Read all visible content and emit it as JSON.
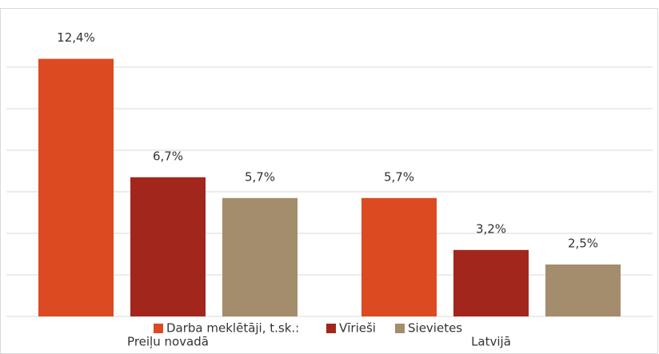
{
  "chart_data": {
    "type": "bar",
    "categories": [
      "Preiļu novadā",
      "Latvijā"
    ],
    "series": [
      {
        "name": "Darba meklētāji, t.sk.:",
        "color": "#dc4a22",
        "values": [
          12.4,
          5.7
        ],
        "value_labels": [
          "12,4%",
          "5,7%"
        ]
      },
      {
        "name": "Vīrieši",
        "color": "#a3261c",
        "values": [
          6.7,
          3.2
        ],
        "value_labels": [
          "6,7%",
          "3,2%"
        ]
      },
      {
        "name": "Sievietes",
        "color": "#a48d6c",
        "values": [
          5.7,
          2.5
        ],
        "value_labels": [
          "5,7%",
          "2,5%"
        ]
      }
    ],
    "ylim": [
      0,
      14
    ],
    "yticks": [
      0,
      2,
      4,
      6,
      8,
      10,
      12
    ],
    "grid": true,
    "legend": "bottom"
  }
}
